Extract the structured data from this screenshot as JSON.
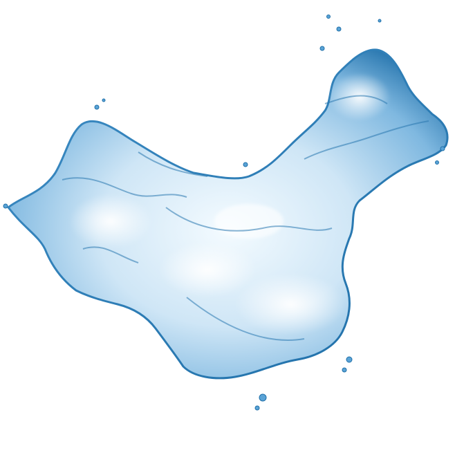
{
  "image": {
    "subject": "water-splash-map-of-china",
    "background_color": "#ffffff",
    "palette": {
      "water_deep": "#1f6fa8",
      "water_mid": "#5aa3d6",
      "water_light": "#cfe6f6",
      "water_highlight": "#f4fbff"
    }
  }
}
